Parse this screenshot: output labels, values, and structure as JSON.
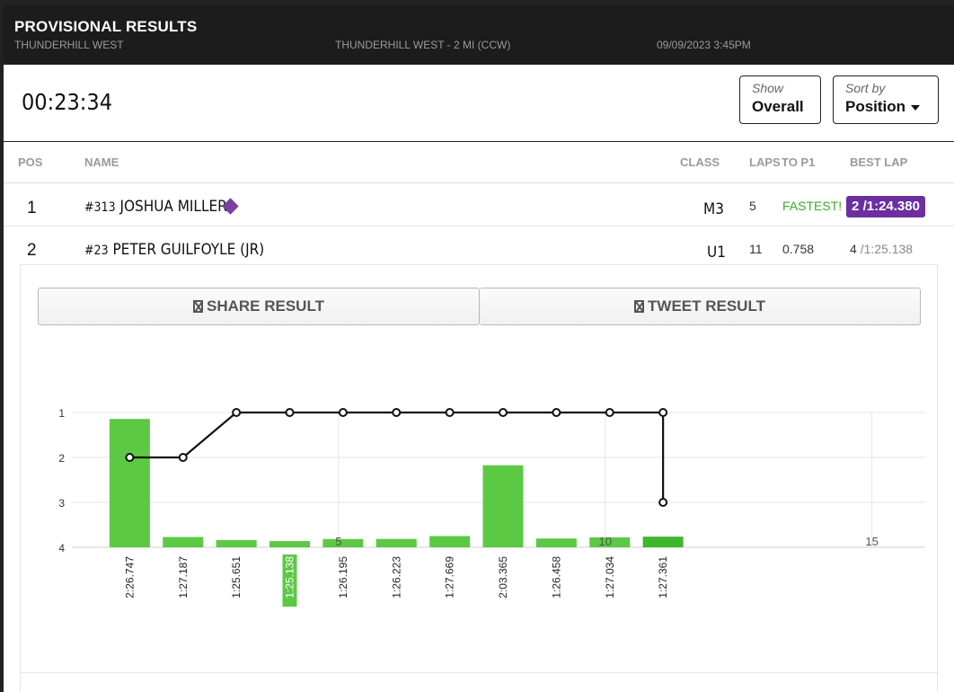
{
  "header": {
    "title": "PROVISIONAL RESULTS",
    "track": "THUNDERHILL WEST",
    "course": "THUNDERHILL WEST - 2 MI (CCW)",
    "datetime": "09/09/2023 3:45PM"
  },
  "timer": "00:23:34",
  "controls": {
    "show_label": "Show",
    "show_value": "Overall",
    "sort_label": "Sort by",
    "sort_value": "Position"
  },
  "table": {
    "columns": [
      "POS",
      "NAME",
      "CLASS",
      "LAPS",
      "TO P1",
      "BEST LAP"
    ],
    "rows": [
      {
        "pos": "1",
        "number": "#313",
        "name": "JOSHUA MILLER",
        "class": "M3",
        "laps": "5",
        "to_p1": "FASTEST!",
        "best_lap_num": "2",
        "best_lap_time": "/1:24.380"
      },
      {
        "pos": "2",
        "number": "#23",
        "name": "PETER GUILFOYLE (JR)",
        "class": "U1",
        "laps": "11",
        "to_p1": "0.758",
        "best_lap_num": "4",
        "best_lap_time": "/1:25.138"
      }
    ]
  },
  "buttons": {
    "share": "SHARE RESULT",
    "tweet": "TWEET RESULT"
  },
  "chart_data": {
    "type": "bar+line",
    "series": [
      {
        "name": "lap_time",
        "type": "bar",
        "x": [
          1,
          2,
          3,
          4,
          5,
          6,
          7,
          8,
          9,
          10,
          11
        ],
        "labels": [
          "2:26.747",
          "1:27.187",
          "1:25.651",
          "1:25.138",
          "1:26.195",
          "1:26.223",
          "1:27.669",
          "2:03.365",
          "1:26.458",
          "1:27.034",
          "1:27.361"
        ],
        "highlight_index": 3,
        "current_index": 10
      },
      {
        "name": "position",
        "type": "line",
        "x": [
          1,
          2,
          3,
          4,
          5,
          6,
          7,
          8,
          9,
          10,
          11,
          11
        ],
        "values": [
          2,
          2,
          1,
          1,
          1,
          1,
          1,
          1,
          1,
          1,
          1,
          3
        ]
      }
    ],
    "x_ticks": [
      5,
      10,
      15
    ],
    "xlim": [
      0,
      16
    ],
    "y_ticks": [
      1,
      2,
      3,
      4
    ],
    "ylim": [
      1,
      4
    ],
    "y_inverted": true,
    "bar_scale_seconds": [
      82,
      150
    ],
    "grid": true,
    "colors": {
      "bar": "#5cc945",
      "bar_current": "#3db82a",
      "line": "#111111",
      "grid": "#e6e6e6",
      "highlight_label": "#5cc945"
    }
  }
}
